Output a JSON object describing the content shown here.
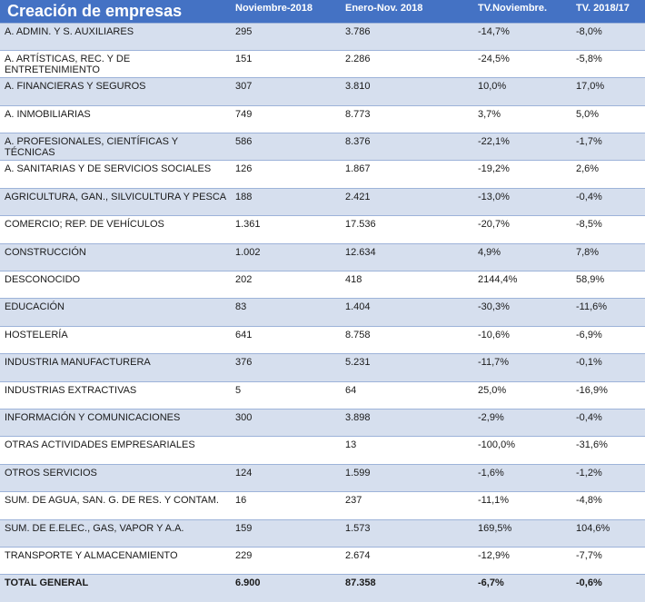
{
  "header": {
    "title": "Creación de empresas",
    "col_nov": "Noviembre-2018",
    "col_ene": "Enero-Nov. 2018",
    "col_tvnov": "TV.Noviembre.",
    "col_tvyear": "TV. 2018/17"
  },
  "rows": [
    {
      "name": "A. ADMIN. Y S. AUXILIARES",
      "nov": "295",
      "ene": "3.786",
      "tvnov": "-14,7%",
      "tvyear": "-8,0%"
    },
    {
      "name": "A. ARTÍSTICAS, REC. Y DE ENTRETENIMIENTO",
      "nov": "151",
      "ene": "2.286",
      "tvnov": "-24,5%",
      "tvyear": "-5,8%"
    },
    {
      "name": "A. FINANCIERAS Y SEGUROS",
      "nov": "307",
      "ene": "3.810",
      "tvnov": "10,0%",
      "tvyear": "17,0%"
    },
    {
      "name": " A. INMOBILIARIAS",
      "nov": "749",
      "ene": "8.773",
      "tvnov": "3,7%",
      "tvyear": "5,0%"
    },
    {
      "name": " A. PROFESIONALES, CIENTÍFICAS Y TÉCNICAS",
      "nov": "586",
      "ene": "8.376",
      "tvnov": "-22,1%",
      "tvyear": "-1,7%"
    },
    {
      "name": " A. SANITARIAS Y DE SERVICIOS SOCIALES",
      "nov": "126",
      "ene": "1.867",
      "tvnov": "-19,2%",
      "tvyear": "2,6%"
    },
    {
      "name": " AGRICULTURA, GAN., SILVICULTURA Y PESCA",
      "nov": "188",
      "ene": "2.421",
      "tvnov": "-13,0%",
      "tvyear": "-0,4%"
    },
    {
      "name": "COMERCIO; REP. DE VEHÍCULOS",
      "nov": "1.361",
      "ene": "17.536",
      "tvnov": "-20,7%",
      "tvyear": "-8,5%"
    },
    {
      "name": " CONSTRUCCIÓN",
      "nov": "1.002",
      "ene": "12.634",
      "tvnov": "4,9%",
      "tvyear": "7,8%"
    },
    {
      "name": " DESCONOCIDO",
      "nov": "202",
      "ene": "418",
      "tvnov": "2144,4%",
      "tvyear": "58,9%"
    },
    {
      "name": " EDUCACIÓN",
      "nov": "83",
      "ene": "1.404",
      "tvnov": "-30,3%",
      "tvyear": "-11,6%"
    },
    {
      "name": " HOSTELERÍA",
      "nov": "641",
      "ene": "8.758",
      "tvnov": "-10,6%",
      "tvyear": "-6,9%"
    },
    {
      "name": " INDUSTRIA MANUFACTURERA",
      "nov": "376",
      "ene": "5.231",
      "tvnov": "-11,7%",
      "tvyear": "-0,1%"
    },
    {
      "name": " INDUSTRIAS EXTRACTIVAS",
      "nov": "5",
      "ene": "64",
      "tvnov": "25,0%",
      "tvyear": "-16,9%"
    },
    {
      "name": " INFORMACIÓN Y COMUNICACIONES",
      "nov": "300",
      "ene": "3.898",
      "tvnov": "-2,9%",
      "tvyear": "-0,4%"
    },
    {
      "name": " OTRAS ACTIVIDADES EMPRESARIALES",
      "nov": "",
      "ene": "13",
      "tvnov": "-100,0%",
      "tvyear": "-31,6%"
    },
    {
      "name": " OTROS SERVICIOS",
      "nov": "124",
      "ene": "1.599",
      "tvnov": "-1,6%",
      "tvyear": "-1,2%"
    },
    {
      "name": "SUM. DE AGUA, SAN. G. DE RES. Y CONTAM.",
      "nov": "16",
      "ene": "237",
      "tvnov": "-11,1%",
      "tvyear": "-4,8%"
    },
    {
      "name": "SUM. DE E.ELEC., GAS, VAPOR Y A.A.",
      "nov": "159",
      "ene": "1.573",
      "tvnov": "169,5%",
      "tvyear": "104,6%"
    },
    {
      "name": " TRANSPORTE Y ALMACENAMIENTO",
      "nov": "229",
      "ene": "2.674",
      "tvnov": "-12,9%",
      "tvyear": "-7,7%"
    }
  ],
  "total": {
    "name": "TOTAL GENERAL",
    "nov": "6.900",
    "ene": "87.358",
    "tvnov": "-6,7%",
    "tvyear": "-0,6%"
  },
  "colors": {
    "header_bg": "#4472c4",
    "shade_bg": "#d6dfee",
    "white_bg": "#ffffff"
  }
}
